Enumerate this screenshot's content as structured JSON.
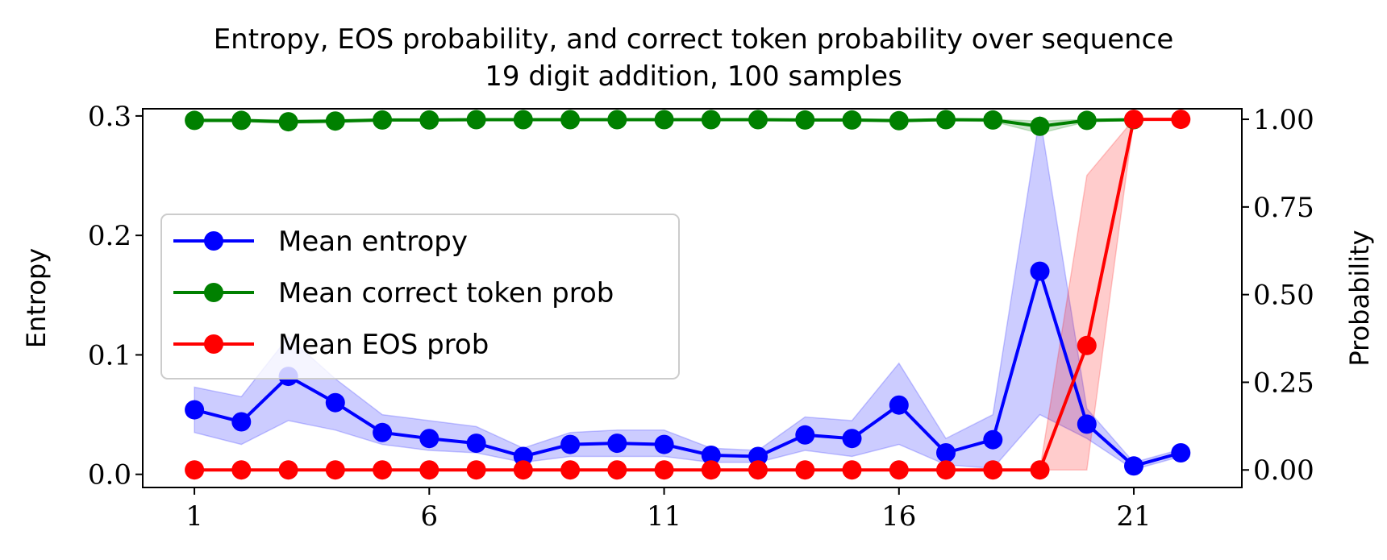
{
  "chart_data": {
    "type": "line",
    "title": "Entropy, EOS probability, and correct token probability over sequence",
    "subtitle": "19 digit addition, 100 samples",
    "xlabel": "",
    "ylabel_left": "Entropy",
    "ylabel_right": "Probability",
    "x": [
      1,
      2,
      3,
      4,
      5,
      6,
      7,
      8,
      9,
      10,
      11,
      12,
      13,
      14,
      15,
      16,
      17,
      18,
      19,
      20,
      21,
      22
    ],
    "x_ticks": [
      1,
      6,
      11,
      16,
      21
    ],
    "xlim": [
      -0.1,
      23.3
    ],
    "ylim_left": [
      -0.011,
      0.306
    ],
    "ylim_right": [
      -0.05,
      1.03
    ],
    "y_ticks_left": [
      "0.0",
      "0.1",
      "0.2",
      "0.3"
    ],
    "y_ticks_right": [
      "0.00",
      "0.25",
      "0.50",
      "0.75",
      "1.00"
    ],
    "grid": false,
    "legend_position": "center-left",
    "series": [
      {
        "name": "Mean entropy",
        "axis": "left",
        "color": "#0000ff",
        "values": [
          0.054,
          0.044,
          0.082,
          0.06,
          0.035,
          0.03,
          0.026,
          0.015,
          0.025,
          0.026,
          0.025,
          0.016,
          0.015,
          0.033,
          0.03,
          0.058,
          0.018,
          0.029,
          0.17,
          0.042,
          0.007,
          0.018
        ],
        "band_lower": [
          0.035,
          0.025,
          0.045,
          0.037,
          0.025,
          0.02,
          0.018,
          0.01,
          0.015,
          0.015,
          0.015,
          0.01,
          0.01,
          0.02,
          0.015,
          0.025,
          0.008,
          0.005,
          0.05,
          0.03,
          0.004,
          0.015
        ],
        "band_upper": [
          0.073,
          0.065,
          0.115,
          0.08,
          0.05,
          0.045,
          0.04,
          0.022,
          0.035,
          0.037,
          0.037,
          0.022,
          0.02,
          0.048,
          0.045,
          0.093,
          0.03,
          0.05,
          0.3,
          0.055,
          0.01,
          0.021
        ]
      },
      {
        "name": "Mean correct token prob",
        "axis": "right",
        "color": "#008000",
        "values": [
          0.997,
          0.997,
          0.993,
          0.995,
          0.998,
          0.998,
          0.999,
          0.999,
          0.999,
          0.999,
          0.999,
          0.999,
          0.999,
          0.998,
          0.998,
          0.996,
          0.999,
          0.998,
          0.98,
          0.997,
          0.999,
          null
        ],
        "band_lower": [
          0.993,
          0.993,
          0.988,
          0.99,
          0.995,
          0.995,
          0.996,
          0.996,
          0.996,
          0.996,
          0.996,
          0.996,
          0.996,
          0.995,
          0.995,
          0.992,
          0.996,
          0.994,
          0.96,
          0.993,
          0.997,
          null
        ],
        "band_upper": [
          1.0,
          1.0,
          0.998,
          0.999,
          1.0,
          1.0,
          1.0,
          1.0,
          1.0,
          1.0,
          1.0,
          1.0,
          1.0,
          1.0,
          1.0,
          1.0,
          1.0,
          1.0,
          0.995,
          1.0,
          1.0,
          null
        ]
      },
      {
        "name": "Mean EOS prob",
        "axis": "right",
        "color": "#ff0000",
        "values": [
          0.0,
          0.0,
          0.0,
          0.0,
          0.0,
          0.0,
          0.0,
          0.0,
          0.0,
          0.0,
          0.0,
          0.0,
          0.0,
          0.0,
          0.0,
          0.0,
          0.0,
          0.0,
          0.0,
          0.355,
          1.0,
          1.0
        ],
        "band_lower": [
          0.0,
          0.0,
          0.0,
          0.0,
          0.0,
          0.0,
          0.0,
          0.0,
          0.0,
          0.0,
          0.0,
          0.0,
          0.0,
          0.0,
          0.0,
          0.0,
          0.0,
          0.0,
          0.0,
          0.0,
          1.0,
          1.0
        ],
        "band_upper": [
          0.0,
          0.0,
          0.0,
          0.0,
          0.0,
          0.0,
          0.0,
          0.0,
          0.0,
          0.0,
          0.0,
          0.0,
          0.0,
          0.0,
          0.0,
          0.0,
          0.0,
          0.0,
          0.0,
          0.84,
          1.0,
          1.0
        ]
      }
    ]
  }
}
